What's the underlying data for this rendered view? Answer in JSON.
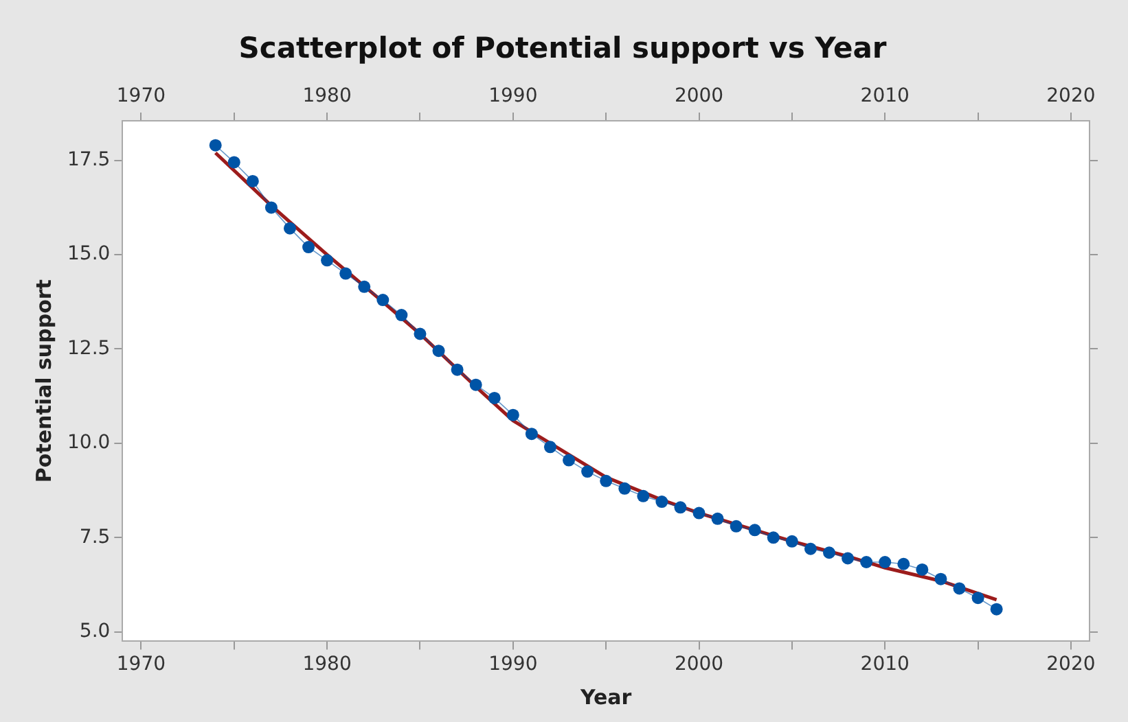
{
  "chart_data": {
    "type": "line",
    "title": "Scatterplot of Potential support vs Year",
    "xlabel": "Year",
    "ylabel": "Potential support",
    "x": [
      1974,
      1975,
      1976,
      1977,
      1978,
      1979,
      1980,
      1981,
      1982,
      1983,
      1984,
      1985,
      1986,
      1987,
      1988,
      1989,
      1990,
      1991,
      1992,
      1993,
      1994,
      1995,
      1996,
      1997,
      1998,
      1999,
      2000,
      2001,
      2002,
      2003,
      2004,
      2005,
      2006,
      2007,
      2008,
      2009,
      2010,
      2011,
      2012,
      2013,
      2014,
      2015,
      2016
    ],
    "series": [
      {
        "marker": "circle",
        "color": "#0054a6",
        "values": [
          17.9,
          17.45,
          16.95,
          16.25,
          15.7,
          15.2,
          14.85,
          14.5,
          14.15,
          13.8,
          13.4,
          12.9,
          12.45,
          11.95,
          11.55,
          11.2,
          10.75,
          10.25,
          9.9,
          9.55,
          9.25,
          9.0,
          8.8,
          8.6,
          8.45,
          8.3,
          8.15,
          8.0,
          7.8,
          7.7,
          7.5,
          7.4,
          7.2,
          7.1,
          6.95,
          6.85,
          6.85,
          6.8,
          6.65,
          6.4,
          6.15,
          5.9,
          5.6
        ]
      },
      {
        "marker": "none",
        "color": "#9c1c1c",
        "x": [
          1974,
          1977,
          1980,
          1983,
          1985,
          1988,
          1990,
          1993,
          1995,
          1998,
          2000,
          2003,
          2005,
          2008,
          2010,
          2013,
          2016
        ],
        "values": [
          17.7,
          16.3,
          15.0,
          13.75,
          12.9,
          11.5,
          10.6,
          9.7,
          9.1,
          8.5,
          8.15,
          7.7,
          7.4,
          7.0,
          6.7,
          6.35,
          5.85
        ]
      }
    ],
    "xlim": [
      1969,
      2021
    ],
    "xticks": [
      1970,
      {
        "value": 1975,
        "label": null
      },
      1980,
      {
        "value": 1985,
        "label": null
      },
      1990,
      {
        "value": 1995,
        "label": null
      },
      2000,
      {
        "value": 2005,
        "label": null
      },
      2010,
      {
        "value": 2015,
        "label": null
      },
      2020
    ],
    "x2lim": [
      1969,
      2021
    ],
    "x2ticks": [
      1970,
      {
        "value": 1975,
        "label": null
      },
      1980,
      {
        "value": 1985,
        "label": null
      },
      1990,
      {
        "value": 1995,
        "label": null
      },
      2000,
      {
        "value": 2005,
        "label": null
      },
      2010,
      {
        "value": 2015,
        "label": null
      },
      2020
    ],
    "ylim": [
      4.75,
      18.55
    ],
    "yticks": [
      {
        "value": 5,
        "label": "5.0"
      },
      7.5,
      {
        "value": 10,
        "label": "10.0"
      },
      12.5,
      {
        "value": 15,
        "label": "15.0"
      },
      17.5
    ],
    "grid": false,
    "legend": false
  }
}
